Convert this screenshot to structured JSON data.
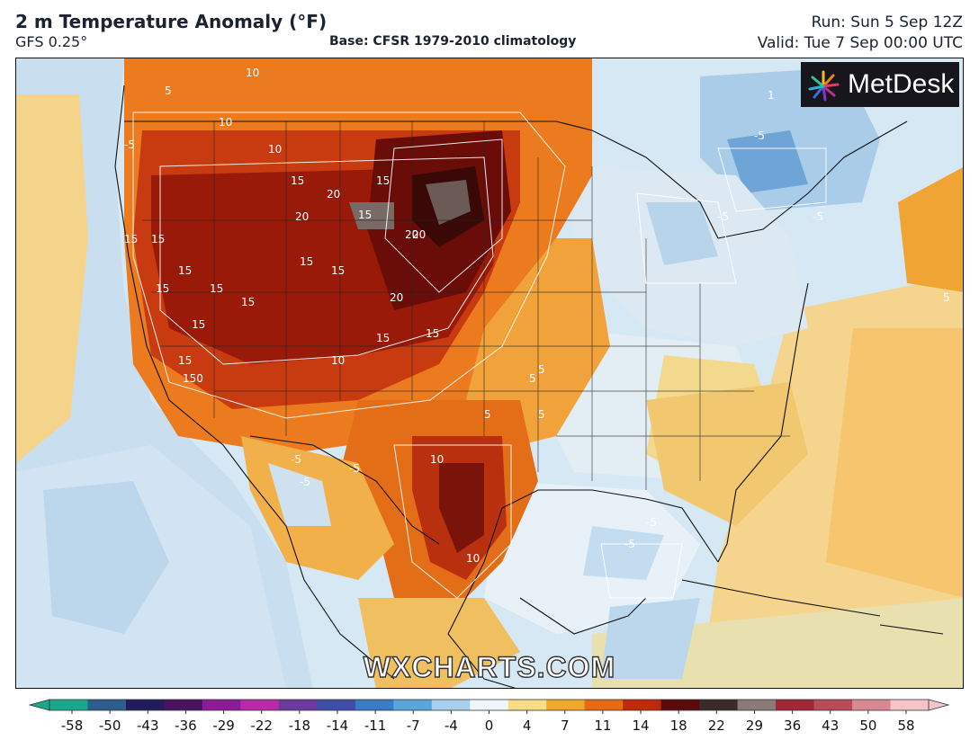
{
  "header": {
    "title": "2 m Temperature Anomaly (°F)",
    "model": "GFS 0.25°",
    "base": "Base: CFSR 1979-2010 climatology",
    "run": "Run: Sun 5 Sep 12Z",
    "valid": "Valid: Tue 7 Sep 00:00 UTC"
  },
  "logo": {
    "text": "MetDesk",
    "icon": "metdesk-starburst-icon"
  },
  "watermark": "WXCHARTS.COM",
  "map": {
    "region": "North America",
    "variable": "2 m temperature anomaly",
    "contour_labels": [
      "10",
      "5",
      "15",
      "20",
      "-5",
      "1",
      "150"
    ]
  },
  "colorbar": {
    "ticks": [
      "-58",
      "-50",
      "-43",
      "-36",
      "-29",
      "-22",
      "-18",
      "-14",
      "-11",
      "-7",
      "-4",
      "0",
      "4",
      "7",
      "11",
      "14",
      "18",
      "22",
      "29",
      "36",
      "43",
      "50",
      "58"
    ],
    "colors": [
      "#1aa88c",
      "#2b5e8c",
      "#221c5e",
      "#4a1360",
      "#8b1a96",
      "#b82aa8",
      "#6b3a9c",
      "#3f4fa8",
      "#3a7cc4",
      "#5aa5dc",
      "#a8d0ec",
      "#eef6fa",
      "#f7dc86",
      "#f0a828",
      "#e86a12",
      "#c02a0a",
      "#5a0a0a",
      "#3a2a2a",
      "#8a7a78",
      "#a02838",
      "#b84a5a",
      "#d88890",
      "#f4c4c8"
    ]
  }
}
